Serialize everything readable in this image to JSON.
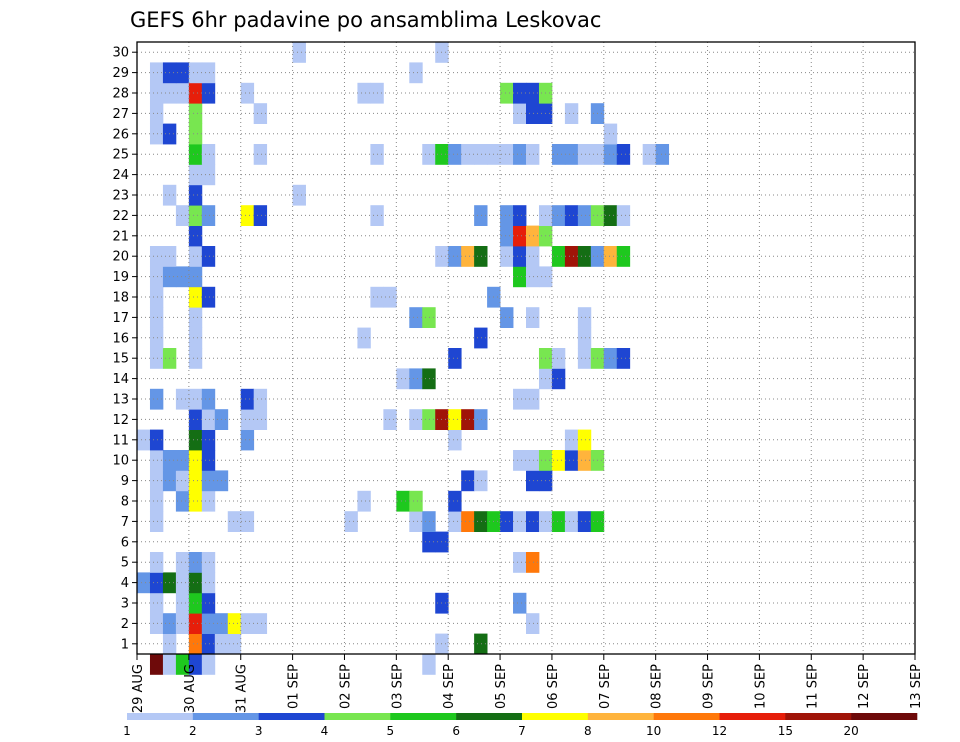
{
  "chart_data": {
    "type": "heatmap",
    "title": "GEFS 6hr padavine po ansamblima Leskovac",
    "xlabel": "",
    "ylabel": "",
    "x_ticks": [
      "29 AUG",
      "30 AUG",
      "31 AUG",
      "01 SEP",
      "02 SEP",
      "03 SEP",
      "04 SEP",
      "05 SEP",
      "06 SEP",
      "07 SEP",
      "08 SEP",
      "09 SEP",
      "10 SEP",
      "11 SEP",
      "12 SEP",
      "13 SEP"
    ],
    "y_ticks": [
      "1",
      "2",
      "3",
      "4",
      "5",
      "6",
      "7",
      "8",
      "9",
      "10",
      "11",
      "12",
      "13",
      "14",
      "15",
      "16",
      "17",
      "18",
      "19",
      "20",
      "21",
      "22",
      "23",
      "24",
      "25",
      "26",
      "27",
      "28",
      "29",
      "30"
    ],
    "time_steps_per_day": 4,
    "ensemble_members": 30,
    "grid": "dotted",
    "colorbar": {
      "thresholds": [
        "1",
        "2",
        "3",
        "4",
        "5",
        "6",
        "7",
        "8",
        "10",
        "12",
        "15",
        "20"
      ],
      "colors": [
        "#b4c8f5",
        "#6496e6",
        "#1e46d2",
        "#78e650",
        "#1ec81e",
        "#146e14",
        "#ffff00",
        "#ffb43c",
        "#ff780a",
        "#e61e0a",
        "#a01408",
        "#6e0a0a"
      ]
    },
    "cells": [
      [
        30,
        1,
        11
      ],
      [
        30,
        2,
        0
      ],
      [
        30,
        3,
        4
      ],
      [
        30,
        4,
        2
      ],
      [
        30,
        5,
        0
      ],
      [
        30,
        22,
        0
      ],
      [
        29,
        2,
        0
      ],
      [
        29,
        4,
        8
      ],
      [
        29,
        5,
        2
      ],
      [
        29,
        6,
        0
      ],
      [
        29,
        7,
        0
      ],
      [
        29,
        23,
        0
      ],
      [
        29,
        26,
        5
      ],
      [
        28,
        1,
        0
      ],
      [
        28,
        2,
        1
      ],
      [
        28,
        3,
        0
      ],
      [
        28,
        4,
        9
      ],
      [
        28,
        5,
        1
      ],
      [
        28,
        6,
        1
      ],
      [
        28,
        7,
        6
      ],
      [
        28,
        8,
        0
      ],
      [
        28,
        9,
        0
      ],
      [
        28,
        30,
        0
      ],
      [
        27,
        1,
        0
      ],
      [
        27,
        3,
        0
      ],
      [
        27,
        4,
        4
      ],
      [
        27,
        5,
        2
      ],
      [
        27,
        23,
        2
      ],
      [
        27,
        29,
        1
      ],
      [
        26,
        0,
        1
      ],
      [
        26,
        1,
        2
      ],
      [
        26,
        2,
        5
      ],
      [
        26,
        3,
        0
      ],
      [
        26,
        4,
        5
      ],
      [
        26,
        5,
        0
      ],
      [
        25,
        1,
        0
      ],
      [
        25,
        3,
        0
      ],
      [
        25,
        4,
        1
      ],
      [
        25,
        5,
        0
      ],
      [
        25,
        29,
        0
      ],
      [
        25,
        30,
        8
      ],
      [
        24,
        22,
        2
      ],
      [
        24,
        23,
        2
      ],
      [
        23,
        1,
        0
      ],
      [
        23,
        7,
        0
      ],
      [
        23,
        8,
        0
      ],
      [
        23,
        16,
        0
      ],
      [
        23,
        21,
        0
      ],
      [
        23,
        22,
        1
      ],
      [
        23,
        24,
        0
      ],
      [
        23,
        25,
        8
      ],
      [
        23,
        26,
        5
      ],
      [
        23,
        27,
        4
      ],
      [
        23,
        28,
        2
      ],
      [
        23,
        29,
        0
      ],
      [
        23,
        30,
        2
      ],
      [
        23,
        31,
        0
      ],
      [
        23,
        32,
        4
      ],
      [
        23,
        33,
        0
      ],
      [
        23,
        34,
        2
      ],
      [
        23,
        35,
        4
      ],
      [
        22,
        1,
        0
      ],
      [
        22,
        3,
        1
      ],
      [
        22,
        4,
        6
      ],
      [
        22,
        5,
        0
      ],
      [
        22,
        17,
        0
      ],
      [
        22,
        20,
        4
      ],
      [
        22,
        21,
        3
      ],
      [
        22,
        24,
        2
      ],
      [
        21,
        1,
        0
      ],
      [
        21,
        2,
        1
      ],
      [
        21,
        3,
        0
      ],
      [
        21,
        4,
        6
      ],
      [
        21,
        5,
        1
      ],
      [
        21,
        6,
        1
      ],
      [
        21,
        25,
        2
      ],
      [
        21,
        26,
        0
      ],
      [
        21,
        30,
        2
      ],
      [
        21,
        31,
        2
      ],
      [
        20,
        1,
        0
      ],
      [
        20,
        2,
        1
      ],
      [
        20,
        3,
        1
      ],
      [
        20,
        4,
        6
      ],
      [
        20,
        5,
        2
      ],
      [
        20,
        29,
        0
      ],
      [
        20,
        30,
        0
      ],
      [
        20,
        31,
        3
      ],
      [
        20,
        32,
        6
      ],
      [
        20,
        33,
        2
      ],
      [
        20,
        34,
        7
      ],
      [
        20,
        35,
        3
      ],
      [
        19,
        0,
        0
      ],
      [
        19,
        1,
        2
      ],
      [
        19,
        4,
        5
      ],
      [
        19,
        5,
        2
      ],
      [
        19,
        8,
        1
      ],
      [
        19,
        24,
        0
      ],
      [
        19,
        33,
        0
      ],
      [
        19,
        34,
        6
      ],
      [
        18,
        4,
        2
      ],
      [
        18,
        5,
        0
      ],
      [
        18,
        6,
        1
      ],
      [
        18,
        8,
        0
      ],
      [
        18,
        9,
        0
      ],
      [
        18,
        19,
        0
      ],
      [
        18,
        21,
        0
      ],
      [
        18,
        22,
        3
      ],
      [
        18,
        23,
        10
      ],
      [
        18,
        24,
        6
      ],
      [
        18,
        25,
        10
      ],
      [
        18,
        26,
        1
      ],
      [
        17,
        1,
        1
      ],
      [
        17,
        3,
        0
      ],
      [
        17,
        4,
        0
      ],
      [
        17,
        5,
        1
      ],
      [
        17,
        8,
        2
      ],
      [
        17,
        9,
        0
      ],
      [
        17,
        29,
        0
      ],
      [
        17,
        30,
        0
      ],
      [
        16,
        20,
        0
      ],
      [
        16,
        21,
        1
      ],
      [
        16,
        22,
        5
      ],
      [
        16,
        31,
        0
      ],
      [
        16,
        32,
        2
      ],
      [
        15,
        1,
        0
      ],
      [
        15,
        2,
        3
      ],
      [
        15,
        4,
        0
      ],
      [
        15,
        24,
        2
      ],
      [
        15,
        31,
        3
      ],
      [
        15,
        32,
        0
      ],
      [
        15,
        34,
        0
      ],
      [
        15,
        35,
        3
      ],
      [
        15,
        36,
        1
      ],
      [
        15,
        37,
        2
      ],
      [
        14,
        1,
        0
      ],
      [
        14,
        4,
        0
      ],
      [
        14,
        17,
        0
      ],
      [
        14,
        26,
        2
      ],
      [
        14,
        34,
        0
      ],
      [
        13,
        1,
        0
      ],
      [
        13,
        4,
        0
      ],
      [
        13,
        21,
        1
      ],
      [
        13,
        22,
        3
      ],
      [
        13,
        28,
        1
      ],
      [
        13,
        30,
        0
      ],
      [
        13,
        34,
        0
      ],
      [
        12,
        1,
        0
      ],
      [
        12,
        4,
        6
      ],
      [
        12,
        5,
        2
      ],
      [
        12,
        18,
        0
      ],
      [
        12,
        19,
        0
      ],
      [
        12,
        27,
        1
      ],
      [
        11,
        1,
        0
      ],
      [
        11,
        2,
        1
      ],
      [
        11,
        3,
        1
      ],
      [
        11,
        4,
        1
      ],
      [
        11,
        29,
        4
      ],
      [
        11,
        30,
        0
      ],
      [
        11,
        31,
        0
      ],
      [
        10,
        1,
        0
      ],
      [
        10,
        2,
        0
      ],
      [
        10,
        4,
        0
      ],
      [
        10,
        5,
        2
      ],
      [
        10,
        23,
        0
      ],
      [
        10,
        24,
        1
      ],
      [
        10,
        25,
        7
      ],
      [
        10,
        26,
        5
      ],
      [
        10,
        28,
        0
      ],
      [
        10,
        29,
        2
      ],
      [
        10,
        30,
        0
      ],
      [
        10,
        32,
        4
      ],
      [
        10,
        33,
        10
      ],
      [
        10,
        34,
        5
      ],
      [
        10,
        35,
        1
      ],
      [
        10,
        36,
        7
      ],
      [
        10,
        37,
        4
      ],
      [
        9,
        4,
        2
      ],
      [
        9,
        28,
        1
      ],
      [
        9,
        29,
        9
      ],
      [
        9,
        30,
        7
      ],
      [
        9,
        31,
        3
      ],
      [
        8,
        3,
        0
      ],
      [
        8,
        4,
        3
      ],
      [
        8,
        5,
        1
      ],
      [
        8,
        8,
        6
      ],
      [
        8,
        9,
        2
      ],
      [
        8,
        18,
        0
      ],
      [
        8,
        26,
        1
      ],
      [
        8,
        28,
        1
      ],
      [
        8,
        29,
        2
      ],
      [
        8,
        31,
        0
      ],
      [
        8,
        32,
        1
      ],
      [
        8,
        33,
        2
      ],
      [
        8,
        34,
        1
      ],
      [
        8,
        35,
        3
      ],
      [
        8,
        36,
        5
      ],
      [
        8,
        37,
        0
      ],
      [
        7,
        2,
        0
      ],
      [
        7,
        4,
        2
      ],
      [
        7,
        12,
        0
      ],
      [
        6,
        4,
        0
      ],
      [
        6,
        5,
        0
      ],
      [
        5,
        4,
        4
      ],
      [
        5,
        5,
        0
      ],
      [
        5,
        9,
        0
      ],
      [
        5,
        18,
        0
      ],
      [
        5,
        22,
        0
      ],
      [
        5,
        23,
        4
      ],
      [
        5,
        24,
        1
      ],
      [
        5,
        25,
        0
      ],
      [
        5,
        26,
        0
      ],
      [
        5,
        27,
        0
      ],
      [
        5,
        28,
        0
      ],
      [
        5,
        29,
        1
      ],
      [
        5,
        30,
        0
      ],
      [
        5,
        32,
        1
      ],
      [
        5,
        33,
        1
      ],
      [
        5,
        34,
        0
      ],
      [
        5,
        35,
        0
      ],
      [
        5,
        36,
        1
      ],
      [
        5,
        37,
        2
      ],
      [
        5,
        39,
        0
      ],
      [
        5,
        40,
        1
      ],
      [
        4,
        1,
        0
      ],
      [
        4,
        2,
        2
      ],
      [
        4,
        4,
        3
      ],
      [
        4,
        36,
        0
      ],
      [
        3,
        1,
        0
      ],
      [
        3,
        4,
        3
      ],
      [
        3,
        9,
        0
      ],
      [
        3,
        29,
        0
      ],
      [
        3,
        30,
        2
      ],
      [
        3,
        31,
        2
      ],
      [
        3,
        33,
        0
      ],
      [
        3,
        35,
        1
      ],
      [
        2,
        1,
        0
      ],
      [
        2,
        2,
        0
      ],
      [
        2,
        3,
        0
      ],
      [
        2,
        4,
        9
      ],
      [
        2,
        5,
        2
      ],
      [
        2,
        8,
        0
      ],
      [
        2,
        17,
        0
      ],
      [
        2,
        18,
        0
      ],
      [
        2,
        28,
        3
      ],
      [
        2,
        29,
        2
      ],
      [
        2,
        30,
        2
      ],
      [
        2,
        31,
        3
      ],
      [
        1,
        1,
        0
      ],
      [
        1,
        2,
        2
      ],
      [
        1,
        3,
        2
      ],
      [
        1,
        4,
        0
      ],
      [
        1,
        5,
        0
      ],
      [
        1,
        21,
        0
      ],
      [
        0,
        12,
        0
      ],
      [
        0,
        23,
        0
      ]
    ]
  }
}
